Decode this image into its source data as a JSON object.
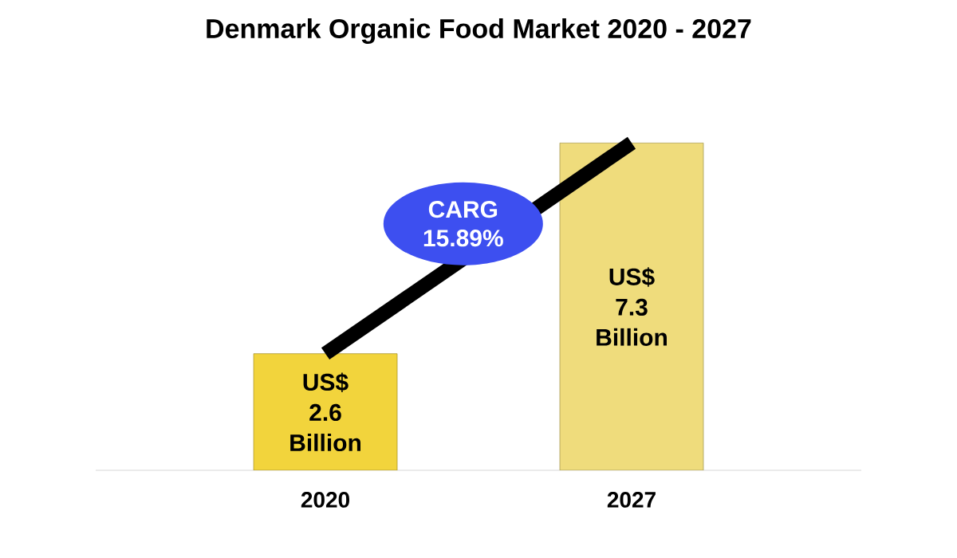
{
  "chart_data": {
    "type": "bar",
    "title": "Denmark Organic Food Market 2020 - 2027",
    "categories": [
      "2020",
      "2027"
    ],
    "values": [
      2.6,
      7.3
    ],
    "colors": [
      "#f2d43c",
      "#efdc7c"
    ],
    "value_labels": [
      "US$ 2.6 Billion",
      "US$ 7.3 Billion"
    ],
    "annotations": [
      "CARG 15.89%"
    ]
  }
}
